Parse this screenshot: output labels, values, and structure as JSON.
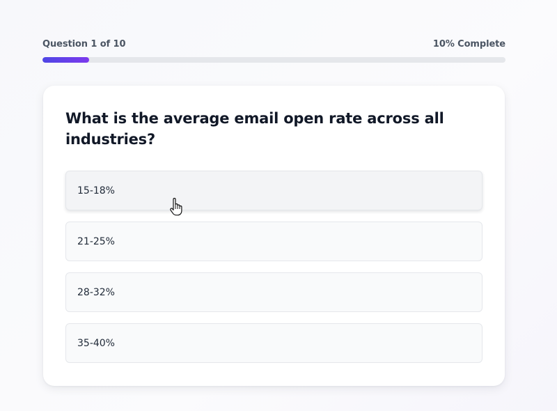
{
  "progress": {
    "question_counter": "Question 1 of 10",
    "complete_label": "10% Complete",
    "fraction": 0.1,
    "fill_color_start": "#4f46e5",
    "fill_color_end": "#7c3aed"
  },
  "question": {
    "text": "What is the average email open rate across all industries?"
  },
  "options": [
    {
      "label": "15-18%",
      "state": "hovered"
    },
    {
      "label": "21-25%",
      "state": "default"
    },
    {
      "label": "28-32%",
      "state": "default"
    },
    {
      "label": "35-40%",
      "state": "default"
    }
  ],
  "cursor": {
    "icon": "hand-pointer-icon"
  }
}
